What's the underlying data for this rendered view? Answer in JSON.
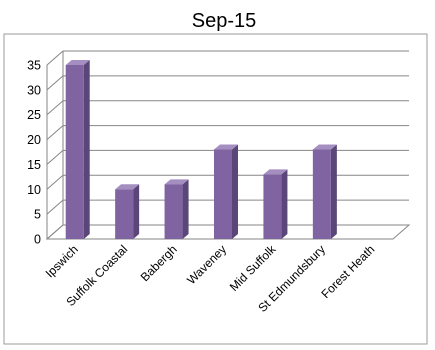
{
  "chart_data": {
    "type": "bar",
    "title": "Sep-15",
    "categories": [
      "Ipswich",
      "Suffolk Coastal",
      "Babergh",
      "Waveney",
      "Mid Suffolk",
      "St Edmundsbury",
      "Forest Heath"
    ],
    "values": [
      35,
      10,
      11,
      18,
      13,
      18,
      0
    ],
    "ylim": [
      0,
      35
    ],
    "yticks": [
      0,
      5,
      10,
      15,
      20,
      25,
      30,
      35
    ],
    "xlabel": "",
    "ylabel": "",
    "grid": true,
    "legend": "none",
    "style": "3d-column"
  },
  "colors": {
    "bar_front": "#8064a2",
    "bar_side": "#5a4678",
    "bar_top": "#a48fc0",
    "gridline": "#868686",
    "wall": "#ffffff",
    "border": "#9b9b9b"
  }
}
